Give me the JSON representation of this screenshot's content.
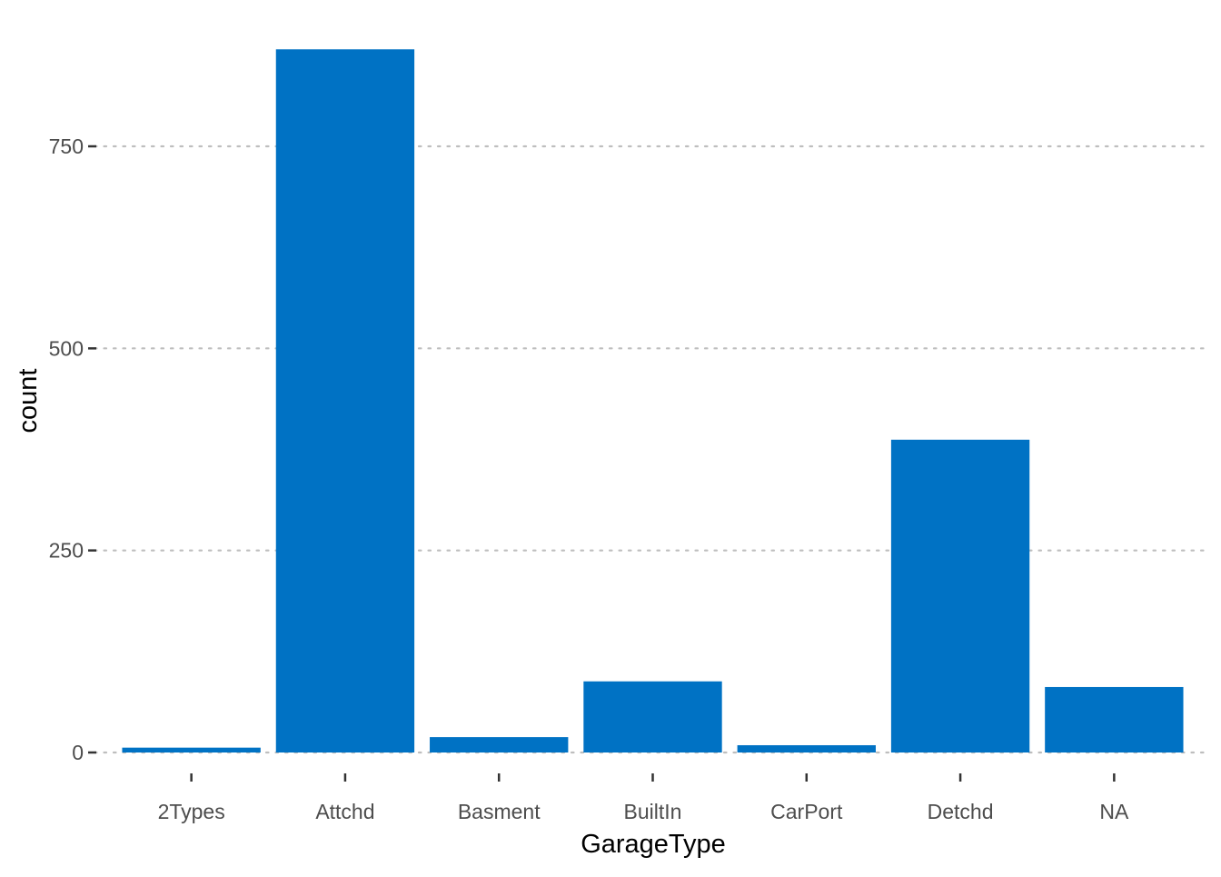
{
  "chart_data": {
    "type": "bar",
    "categories": [
      "2Types",
      "Attchd",
      "Basment",
      "BuiltIn",
      "CarPort",
      "Detchd",
      "NA"
    ],
    "values": [
      6,
      870,
      19,
      88,
      9,
      387,
      81
    ],
    "xlabel": "GarageType",
    "ylabel": "count",
    "yticks": [
      0,
      250,
      500,
      750
    ],
    "ytick_labels": [
      "0",
      "250",
      "500",
      "750"
    ],
    "ylim": [
      0,
      915
    ],
    "grid": "horizontal dotted",
    "legend": "none",
    "colors": {
      "bar": "#0072C4",
      "grid": "#BEBEBE",
      "tick": "#333333"
    }
  }
}
